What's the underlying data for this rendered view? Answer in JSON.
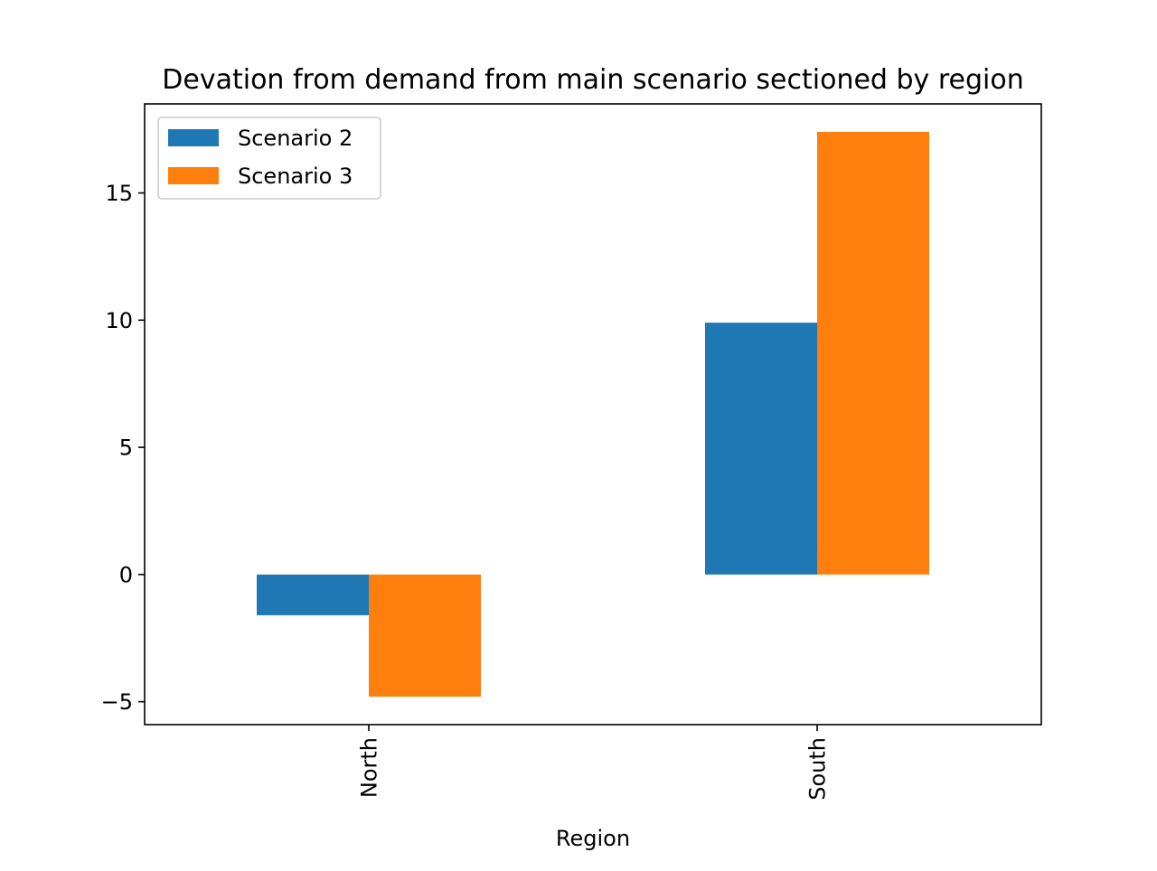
{
  "chart_data": {
    "type": "bar",
    "title": "Devation from demand from main scenario sectioned by region",
    "xlabel": "Region",
    "ylabel": "",
    "categories": [
      "North",
      "South"
    ],
    "series": [
      {
        "name": "Scenario 2",
        "values": [
          -1.6,
          9.9
        ],
        "color": "#1f77b4"
      },
      {
        "name": "Scenario 3",
        "values": [
          -4.8,
          17.4
        ],
        "color": "#ff7f0e"
      }
    ],
    "ylim": [
      -5.9,
      18.5
    ],
    "yticks": [
      -5,
      0,
      5,
      10,
      15
    ],
    "ytick_labels": [
      "−5",
      "0",
      "5",
      "10",
      "15"
    ],
    "xtick_rotation": "vertical",
    "grid": false,
    "legend_position": "upper-left"
  }
}
